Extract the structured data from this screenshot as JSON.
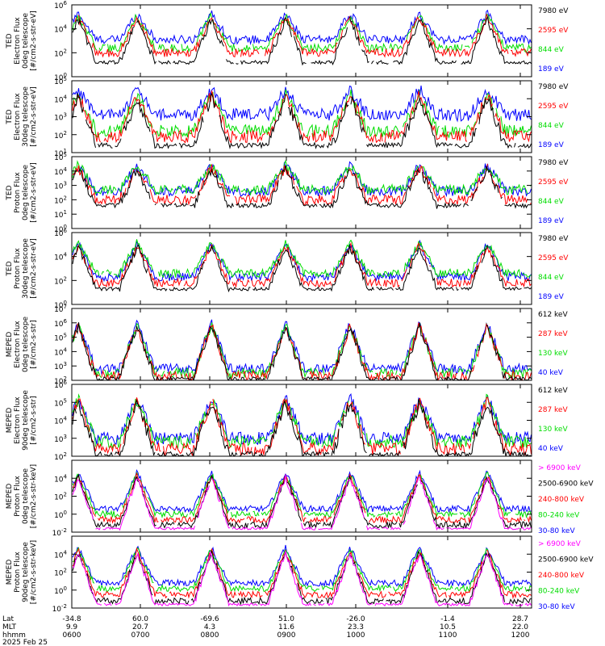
{
  "chart_data": {
    "type": "line",
    "panels": [
      {
        "ylabel": [
          "TED",
          "Electron Flux",
          "0deg telescope",
          "[#/cm2-s-str-eV]"
        ],
        "yticks": [
          {
            "e": 0,
            "s": "10"
          },
          {
            "e": 2,
            "s": "10"
          },
          {
            "e": 4,
            "s": "10"
          },
          {
            "e": 6,
            "s": "10"
          }
        ],
        "ylog": [
          0,
          6
        ],
        "channels": [
          {
            "name": "7980 eV",
            "color": "#000000",
            "level": 1.2
          },
          {
            "name": "2595 eV",
            "color": "#ff0000",
            "level": 2.0
          },
          {
            "name": "844 eV",
            "color": "#00dd00",
            "level": 2.4
          },
          {
            "name": "189 eV",
            "color": "#0000ff",
            "level": 3.1
          }
        ]
      },
      {
        "ylabel": [
          "TED",
          "Electron Flux",
          "30deg telescope",
          "[#/cm2-s-str-eV]"
        ],
        "yticks": [
          {
            "e": 1,
            "s": "10"
          },
          {
            "e": 2,
            "s": "10"
          },
          {
            "e": 3,
            "s": "10"
          },
          {
            "e": 4,
            "s": "10"
          },
          {
            "e": 5,
            "s": "10"
          }
        ],
        "ylog": [
          1,
          5
        ],
        "channels": [
          {
            "name": "7980 eV",
            "color": "#000000",
            "level": 1.4
          },
          {
            "name": "2595 eV",
            "color": "#ff0000",
            "level": 1.9
          },
          {
            "name": "844 eV",
            "color": "#00dd00",
            "level": 2.2
          },
          {
            "name": "189 eV",
            "color": "#0000ff",
            "level": 3.1
          }
        ]
      },
      {
        "ylabel": [
          "TED",
          "Proton Flux",
          "0deg telescope",
          "[#/cm2-s-str-eV]"
        ],
        "yticks": [
          {
            "e": 0,
            "s": "10"
          },
          {
            "e": 1,
            "s": "10"
          },
          {
            "e": 2,
            "s": "10"
          },
          {
            "e": 3,
            "s": "10"
          },
          {
            "e": 4,
            "s": "10"
          },
          {
            "e": 5,
            "s": "10"
          }
        ],
        "ylog": [
          0,
          5
        ],
        "channels": [
          {
            "name": "7980 eV",
            "color": "#000000",
            "level": 1.6
          },
          {
            "name": "2595 eV",
            "color": "#ff0000",
            "level": 2.0
          },
          {
            "name": "844 eV",
            "color": "#00dd00",
            "level": 2.7
          },
          {
            "name": "189 eV",
            "color": "#0000ff",
            "level": 2.6
          }
        ]
      },
      {
        "ylabel": [
          "TED",
          "Proton Flux",
          "30deg telescope",
          "[#/cm2-s-str-eV]"
        ],
        "yticks": [
          {
            "e": 0,
            "s": "10"
          },
          {
            "e": 2,
            "s": "10"
          },
          {
            "e": 4,
            "s": "10"
          },
          {
            "e": 6,
            "s": "10"
          }
        ],
        "ylog": [
          0,
          6
        ],
        "channels": [
          {
            "name": "7980 eV",
            "color": "#000000",
            "level": 1.3
          },
          {
            "name": "2595 eV",
            "color": "#ff0000",
            "level": 1.8
          },
          {
            "name": "844 eV",
            "color": "#00dd00",
            "level": 2.6
          },
          {
            "name": "189 eV",
            "color": "#0000ff",
            "level": 2.3
          }
        ]
      },
      {
        "ylabel": [
          "MEPED",
          "Electron Flux",
          "0deg telescope",
          "[#/cm2-s-str]"
        ],
        "yticks": [
          {
            "e": 2,
            "s": "10"
          },
          {
            "e": 3,
            "s": "10"
          },
          {
            "e": 4,
            "s": "10"
          },
          {
            "e": 5,
            "s": "10"
          },
          {
            "e": 6,
            "s": "10"
          },
          {
            "e": 7,
            "s": "10"
          }
        ],
        "ylog": [
          2,
          7
        ],
        "channels": [
          {
            "name": "612 keV",
            "color": "#000000",
            "level": 2.1
          },
          {
            "name": "287 keV",
            "color": "#ff0000",
            "level": 2.3
          },
          {
            "name": "130 keV",
            "color": "#00dd00",
            "level": 2.5
          },
          {
            "name": "40 keV",
            "color": "#0000ff",
            "level": 2.8
          }
        ]
      },
      {
        "ylabel": [
          "MEPED",
          "Electron Flux",
          "90deg telescope",
          "[#/cm2-s-str]"
        ],
        "yticks": [
          {
            "e": 2,
            "s": "10"
          },
          {
            "e": 3,
            "s": "10"
          },
          {
            "e": 4,
            "s": "10"
          },
          {
            "e": 5,
            "s": "10"
          },
          {
            "e": 6,
            "s": "10"
          }
        ],
        "ylog": [
          2,
          6
        ],
        "channels": [
          {
            "name": "612 keV",
            "color": "#000000",
            "level": 2.1
          },
          {
            "name": "287 keV",
            "color": "#ff0000",
            "level": 2.4
          },
          {
            "name": "130 keV",
            "color": "#00dd00",
            "level": 2.8
          },
          {
            "name": "40 keV",
            "color": "#0000ff",
            "level": 3.0
          }
        ]
      },
      {
        "ylabel": [
          "MEPED",
          "Proton Flux",
          "0deg telescope",
          "[#/cm2-s-str-keV]"
        ],
        "yticks": [
          {
            "e": -2,
            "s": "10"
          },
          {
            "e": 0,
            "s": "10"
          },
          {
            "e": 2,
            "s": "10"
          },
          {
            "e": 4,
            "s": "10"
          }
        ],
        "ylog": [
          -2,
          6
        ],
        "channels": [
          {
            "name": "> 6900 keV",
            "color": "#ff00ff",
            "level": -1.6
          },
          {
            "name": "2500-6900 keV",
            "color": "#000000",
            "level": -1.2
          },
          {
            "name": "240-800 keV",
            "color": "#ff0000",
            "level": -0.6
          },
          {
            "name": "80-240 keV",
            "color": "#00dd00",
            "level": 0.0
          },
          {
            "name": "30-80 keV",
            "color": "#0000ff",
            "level": 0.6
          }
        ]
      },
      {
        "ylabel": [
          "MEPED",
          "Proton Flux",
          "90deg telescope",
          "[#/cm2-s-str-keV]"
        ],
        "yticks": [
          {
            "e": -2,
            "s": "10"
          },
          {
            "e": 0,
            "s": "10"
          },
          {
            "e": 2,
            "s": "10"
          },
          {
            "e": 4,
            "s": "10"
          }
        ],
        "ylog": [
          -2,
          6
        ],
        "channels": [
          {
            "name": "> 6900 keV",
            "color": "#ff00ff",
            "level": -1.6
          },
          {
            "name": "2500-6900 keV",
            "color": "#000000",
            "level": -1.2
          },
          {
            "name": "240-800 keV",
            "color": "#ff0000",
            "level": -0.5
          },
          {
            "name": "80-240 keV",
            "color": "#00dd00",
            "level": 0.2
          },
          {
            "name": "30-80 keV",
            "color": "#0000ff",
            "level": 0.8
          }
        ]
      }
    ],
    "xaxis": {
      "row_labels": [
        "Lat",
        "MLT",
        "hhmm"
      ],
      "ticks": [
        {
          "lat": "-34.8",
          "mlt": "9.9",
          "hhmm": "0600"
        },
        {
          "lat": "60.0",
          "mlt": "20.7",
          "hhmm": "0700"
        },
        {
          "lat": "-69.6",
          "mlt": "4.3",
          "hhmm": "0800"
        },
        {
          "lat": "51.0",
          "mlt": "11.6",
          "hhmm": "0900"
        },
        {
          "lat": "-26.0",
          "mlt": "23.3",
          "hhmm": "1000"
        },
        {
          "lat": "-1.4",
          "mlt": "10.5",
          "hhmm": "1100"
        },
        {
          "lat": "28.7",
          "mlt": "22.0",
          "hhmm": "1200"
        }
      ],
      "date": "2025 Feb 25"
    }
  }
}
